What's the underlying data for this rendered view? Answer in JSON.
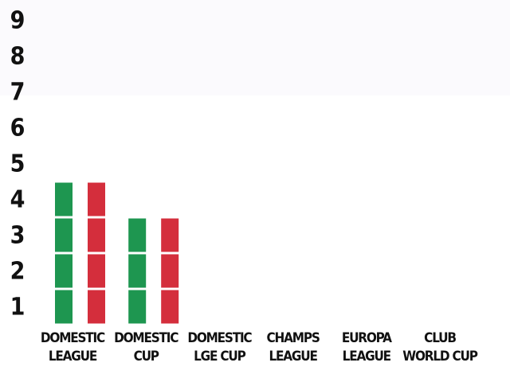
{
  "chart_data": {
    "type": "bar",
    "stacked_unit_blocks": true,
    "categories": [
      [
        "DOMESTIC",
        "LEAGUE"
      ],
      [
        "DOMESTIC",
        "CUP"
      ],
      [
        "DOMESTIC",
        "LGE CUP"
      ],
      [
        "CHAMPS",
        "LEAGUE"
      ],
      [
        "EUROPA",
        "LEAGUE"
      ],
      [
        "CLUB",
        "WORLD CUP"
      ]
    ],
    "series": [
      {
        "color": "#1e9650",
        "values": [
          4,
          3,
          0,
          0,
          0,
          0
        ]
      },
      {
        "color": "#d42e3c",
        "values": [
          4,
          3,
          0,
          0,
          0,
          0
        ]
      }
    ],
    "yticks": [
      "1",
      "2",
      "3",
      "4",
      "5",
      "6",
      "7",
      "8",
      "9"
    ],
    "ylim": [
      0,
      9
    ],
    "title": "",
    "xlabel": "",
    "ylabel": "",
    "grid": false,
    "legend": "none"
  }
}
